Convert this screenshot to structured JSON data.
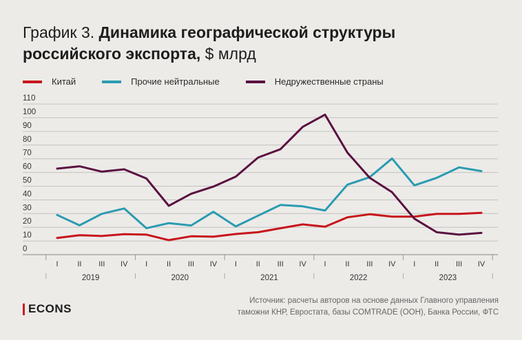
{
  "title": {
    "prefix": "График 3.",
    "bold": "Динамика географической структуры российского экспорта,",
    "unit": "$ млрд"
  },
  "footer": {
    "logo": "ECONS",
    "source_line1": "Источник: расчеты авторов на основе данных Главного управления",
    "source_line2": "таможни КНР, Евростата, базы COMTRADE (ООН), Банка России, ФТС"
  },
  "chart_data": {
    "type": "line",
    "legend_position": "top-left",
    "grid": true,
    "ylim": [
      0,
      110
    ],
    "yticks": [
      0,
      10,
      20,
      30,
      40,
      50,
      60,
      70,
      80,
      90,
      100,
      110
    ],
    "quarters": [
      "I",
      "II",
      "III",
      "IV",
      "I",
      "II",
      "III",
      "IV",
      "I",
      "II",
      "III",
      "IV",
      "I",
      "II",
      "III",
      "IV",
      "I",
      "II",
      "III",
      "IV"
    ],
    "years": [
      "2019",
      "2020",
      "2021",
      "2022",
      "2023"
    ],
    "series": [
      {
        "name": "Китай",
        "color": "#c8141b",
        "values": [
          12.2,
          14.2,
          13.6,
          14.9,
          14.6,
          10.6,
          13.4,
          13.1,
          15.1,
          16.4,
          19.3,
          22.1,
          20.4,
          27.3,
          29.5,
          27.8,
          27.8,
          29.8,
          29.8,
          30.5
        ]
      },
      {
        "name": "Прочие нейтральные",
        "color": "#2a9bb1",
        "values": [
          29.0,
          21.4,
          29.8,
          33.7,
          19.3,
          23.0,
          21.3,
          31.3,
          20.6,
          28.5,
          36.3,
          35.3,
          32.2,
          51.1,
          56.6,
          70.2,
          50.6,
          56.1,
          63.7,
          61.0
        ]
      },
      {
        "name": "Недружественные страны",
        "color": "#5a1040",
        "values": [
          62.8,
          64.5,
          60.6,
          62.3,
          55.6,
          35.7,
          44.4,
          49.7,
          57.0,
          70.9,
          77.0,
          93.3,
          102.2,
          74.5,
          56.1,
          45.6,
          26.3,
          16.4,
          14.6,
          15.9
        ]
      }
    ]
  }
}
